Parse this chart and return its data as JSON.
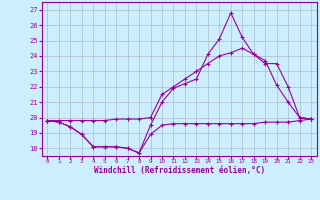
{
  "xlabel": "Windchill (Refroidissement éolien,°C)",
  "ylabel": "",
  "bg_color": "#cceeff",
  "grid_color": "#aabbcc",
  "line_color": "#990099",
  "xlim": [
    -0.5,
    23.5
  ],
  "ylim": [
    17.5,
    27.5
  ],
  "xticks": [
    0,
    1,
    2,
    3,
    4,
    5,
    6,
    7,
    8,
    9,
    10,
    11,
    12,
    13,
    14,
    15,
    16,
    17,
    18,
    19,
    20,
    21,
    22,
    23
  ],
  "yticks": [
    18,
    19,
    20,
    21,
    22,
    23,
    24,
    25,
    26,
    27
  ],
  "line1_x": [
    0,
    1,
    2,
    3,
    4,
    5,
    6,
    7,
    8,
    9,
    10,
    11,
    12,
    13,
    14,
    15,
    16,
    17,
    18,
    19,
    20,
    21,
    22,
    23
  ],
  "line1_y": [
    19.8,
    19.7,
    19.4,
    18.9,
    18.1,
    18.1,
    18.1,
    18.0,
    17.7,
    18.9,
    19.5,
    19.6,
    19.6,
    19.6,
    19.6,
    19.6,
    19.6,
    19.6,
    19.6,
    19.7,
    19.7,
    19.7,
    19.8,
    19.9
  ],
  "line2_x": [
    0,
    1,
    2,
    3,
    4,
    5,
    6,
    7,
    8,
    9,
    10,
    11,
    12,
    13,
    14,
    15,
    16,
    17,
    18,
    19,
    20,
    21,
    22,
    23
  ],
  "line2_y": [
    19.8,
    19.7,
    19.4,
    18.9,
    18.1,
    18.1,
    18.1,
    18.0,
    17.7,
    19.5,
    21.0,
    21.9,
    22.2,
    22.5,
    24.1,
    25.1,
    26.8,
    25.2,
    24.1,
    23.7,
    22.1,
    21.0,
    20.0,
    19.9
  ],
  "line3_x": [
    0,
    1,
    2,
    3,
    4,
    5,
    6,
    7,
    8,
    9,
    10,
    11,
    12,
    13,
    14,
    15,
    16,
    17,
    18,
    19,
    20,
    21,
    22,
    23
  ],
  "line3_y": [
    19.8,
    19.8,
    19.8,
    19.8,
    19.8,
    19.8,
    19.9,
    19.9,
    19.9,
    20.0,
    21.5,
    22.0,
    22.5,
    23.0,
    23.5,
    24.0,
    24.2,
    24.5,
    24.1,
    23.5,
    23.5,
    22.0,
    20.0,
    19.9
  ]
}
